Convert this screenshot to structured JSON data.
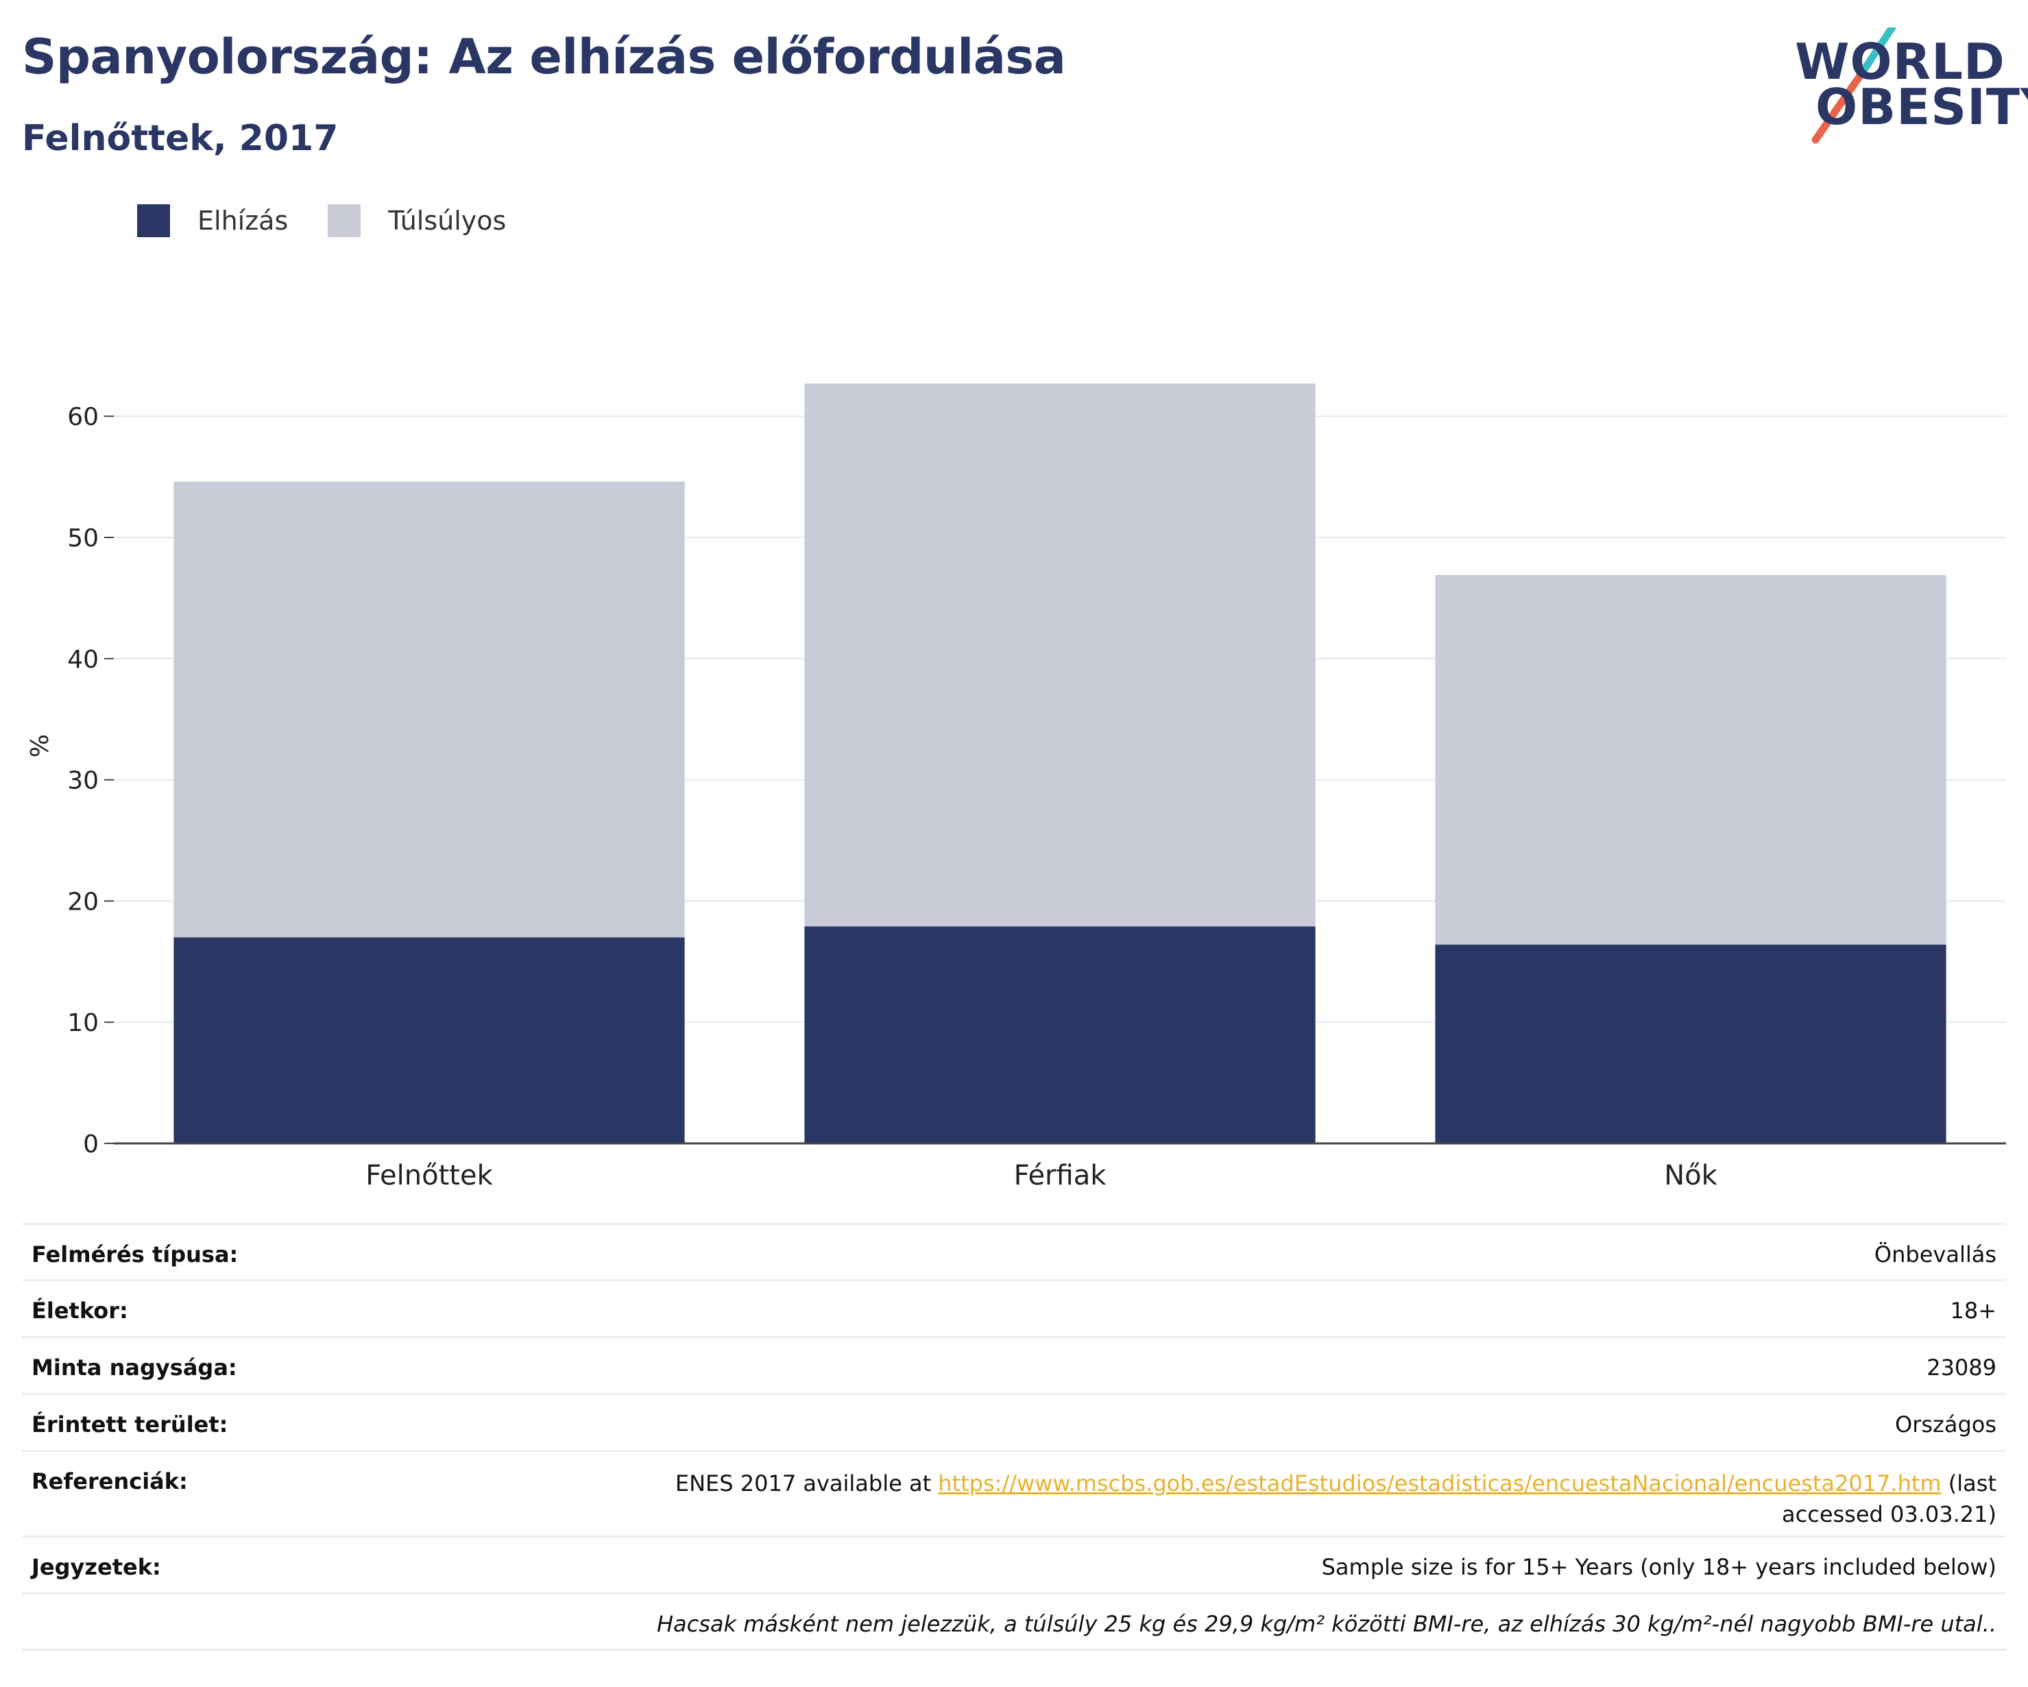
{
  "header": {
    "title": "Spanyolország: Az elhízás előfordulása",
    "subtitle": "Felnőttek, 2017"
  },
  "logo": {
    "line1": "WORLD",
    "line2": "OBESITY",
    "accent_colors": [
      "#3bbfc6",
      "#e8644a"
    ]
  },
  "legend": [
    {
      "label": "Elhízás",
      "color": "#2a3664"
    },
    {
      "label": "Túlsúlyos",
      "color": "#c9cbd7"
    }
  ],
  "chart_data": {
    "type": "bar",
    "stacked": true,
    "categories": [
      "Felnőttek",
      "Férfiak",
      "Nők"
    ],
    "series": [
      {
        "name": "Elhízás",
        "values": [
          17.0,
          17.9,
          16.4
        ],
        "color": "#2a3664"
      },
      {
        "name": "Túlsúlyos",
        "values": [
          37.6,
          44.8,
          30.5
        ],
        "color": "#c9cbd7"
      }
    ],
    "ylabel": "%",
    "ylim": [
      0,
      65
    ],
    "yticks": [
      0,
      10,
      20,
      30,
      40,
      50,
      60
    ],
    "grid": true,
    "legend_position": "top-left"
  },
  "info": {
    "rows": [
      {
        "key": "Felmérés típusa:",
        "value": "Önbevallás"
      },
      {
        "key": "Életkor:",
        "value": "18+"
      },
      {
        "key": "Minta nagysága:",
        "value": "23089"
      },
      {
        "key": "Érintett terület:",
        "value": "Országos"
      }
    ],
    "references": {
      "key": "Referenciák:",
      "prefix": "ENES 2017 available at ",
      "link": "https://www.mscbs.gob.es/estadEstudios/estadisticas/encuestaNacional/encuesta2017.htm",
      "suffix": " (last accessed 03.03.21)"
    },
    "notes": {
      "key": "Jegyzetek:",
      "value": "Sample size is for 15+ Years (only 18+ years included below)"
    },
    "footnote": "Hacsak másként nem jelezzük, a túlsúly 25 kg és 29,9 kg/m² közötti BMI-re, az elhízás 30 kg/m²-nél nagyobb BMI-re utal.."
  }
}
